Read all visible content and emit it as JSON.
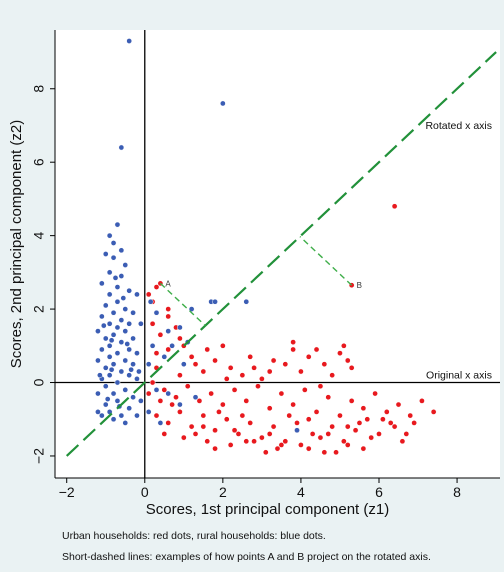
{
  "chart_data": {
    "type": "scatter",
    "title": "",
    "xlabel": "Scores, 1st principal component (z1)",
    "ylabel": "Scores, 2nd principal component (z2)",
    "xlim": [
      -2.3,
      9.1
    ],
    "ylim": [
      -2.6,
      9.6
    ],
    "xticks": [
      -2,
      0,
      2,
      4,
      6,
      8
    ],
    "yticks": [
      -2,
      0,
      2,
      4,
      6,
      8
    ],
    "grid": false,
    "colors": {
      "urban": "#e8191e",
      "rural": "#3b5db4",
      "rotated_axis": "#22913a",
      "projection": "#3fae4a",
      "axis_lines": "#000000",
      "background": "#eaf2f3",
      "plot_bg": "#ffffff"
    },
    "rotated_axis": {
      "label": "Rotated x axis",
      "from": [
        -2,
        -2
      ],
      "to": [
        9,
        9
      ]
    },
    "original_axis": {
      "label": "Original x axis"
    },
    "annotations": [
      {
        "label": "A",
        "x": 0.4,
        "y": 2.7,
        "projection": [
          1.55,
          1.55
        ]
      },
      {
        "label": "B",
        "x": 5.3,
        "y": 2.65,
        "projection": [
          3.975,
          3.975
        ]
      }
    ],
    "series": [
      {
        "group": "urban",
        "color": "#e8191e",
        "points": [
          [
            0.3,
            2.6
          ],
          [
            0.1,
            2.4
          ],
          [
            0.6,
            2.0
          ],
          [
            0.6,
            1.8
          ],
          [
            0.2,
            1.6
          ],
          [
            0.4,
            1.3
          ],
          [
            0.9,
            1.2
          ],
          [
            1.0,
            1.0
          ],
          [
            0.6,
            0.9
          ],
          [
            0.3,
            0.8
          ],
          [
            1.2,
            0.7
          ],
          [
            1.8,
            0.6
          ],
          [
            1.5,
            0.3
          ],
          [
            2.1,
            0.1
          ],
          [
            2.5,
            0.2
          ],
          [
            2.8,
            0.4
          ],
          [
            3.2,
            0.3
          ],
          [
            3.6,
            0.5
          ],
          [
            3.8,
            0.9
          ],
          [
            4.2,
            0.7
          ],
          [
            4.6,
            0.5
          ],
          [
            5.0,
            0.8
          ],
          [
            5.3,
            0.4
          ],
          [
            5.1,
            1.0
          ],
          [
            3.8,
            1.1
          ],
          [
            4.4,
            0.9
          ],
          [
            0.2,
            0.0
          ],
          [
            0.5,
            -0.2
          ],
          [
            0.8,
            -0.4
          ],
          [
            1.1,
            -0.1
          ],
          [
            1.4,
            -0.5
          ],
          [
            1.7,
            -0.3
          ],
          [
            2.0,
            -0.6
          ],
          [
            2.3,
            -0.2
          ],
          [
            2.6,
            -0.5
          ],
          [
            2.9,
            -0.1
          ],
          [
            3.2,
            -0.7
          ],
          [
            3.5,
            -0.3
          ],
          [
            3.8,
            -0.6
          ],
          [
            4.1,
            -0.2
          ],
          [
            4.4,
            -0.8
          ],
          [
            4.7,
            -0.4
          ],
          [
            5.0,
            -0.9
          ],
          [
            5.3,
            -0.5
          ],
          [
            5.6,
            -0.7
          ],
          [
            5.9,
            -0.3
          ],
          [
            6.2,
            -0.8
          ],
          [
            6.5,
            -0.6
          ],
          [
            6.8,
            -0.9
          ],
          [
            7.1,
            -0.5
          ],
          [
            7.4,
            -0.8
          ],
          [
            0.3,
            -0.9
          ],
          [
            0.6,
            -1.1
          ],
          [
            0.9,
            -0.8
          ],
          [
            1.2,
            -1.2
          ],
          [
            1.5,
            -0.9
          ],
          [
            1.8,
            -1.3
          ],
          [
            2.1,
            -1.0
          ],
          [
            2.4,
            -1.4
          ],
          [
            2.7,
            -1.1
          ],
          [
            3.0,
            -1.5
          ],
          [
            3.3,
            -1.2
          ],
          [
            3.6,
            -1.6
          ],
          [
            3.9,
            -1.3
          ],
          [
            4.2,
            -1.0
          ],
          [
            4.5,
            -1.5
          ],
          [
            4.8,
            -1.2
          ],
          [
            5.1,
            -1.6
          ],
          [
            5.4,
            -1.3
          ],
          [
            5.7,
            -1.0
          ],
          [
            6.0,
            -1.4
          ],
          [
            6.3,
            -1.1
          ],
          [
            6.6,
            -1.6
          ],
          [
            6.9,
            -1.1
          ],
          [
            0.5,
            -1.4
          ],
          [
            1.0,
            -1.5
          ],
          [
            1.6,
            -1.6
          ],
          [
            2.2,
            -1.7
          ],
          [
            2.8,
            -1.6
          ],
          [
            3.4,
            -1.8
          ],
          [
            4.0,
            -1.7
          ],
          [
            4.6,
            -1.9
          ],
          [
            3.1,
            -1.9
          ],
          [
            4.2,
            -1.8
          ],
          [
            5.2,
            -1.7
          ],
          [
            5.6,
            -1.8
          ],
          [
            4.9,
            -1.9
          ],
          [
            1.3,
            -1.4
          ],
          [
            0.7,
            -0.6
          ],
          [
            1.9,
            -0.8
          ],
          [
            2.5,
            -0.9
          ],
          [
            3.7,
            -0.9
          ],
          [
            4.3,
            -1.4
          ],
          [
            5.5,
            -1.1
          ],
          [
            0.4,
            -0.5
          ],
          [
            0.9,
            0.2
          ],
          [
            1.3,
            0.5
          ],
          [
            1.6,
            0.9
          ],
          [
            2.2,
            0.4
          ],
          [
            2.7,
            0.7
          ],
          [
            3.3,
            0.6
          ],
          [
            4.0,
            0.3
          ],
          [
            4.8,
            0.2
          ],
          [
            5.2,
            0.6
          ],
          [
            3.0,
            0.1
          ],
          [
            2.0,
            1.0
          ],
          [
            0.8,
            1.5
          ],
          [
            0.2,
            2.2
          ],
          [
            4.5,
            -0.1
          ],
          [
            5.8,
            -1.5
          ],
          [
            6.1,
            -1.0
          ],
          [
            0.1,
            -0.3
          ],
          [
            0.3,
            0.4
          ],
          [
            1.5,
            -1.2
          ],
          [
            2.3,
            -1.3
          ],
          [
            3.2,
            -1.4
          ],
          [
            3.9,
            -1.1
          ],
          [
            4.7,
            -1.4
          ],
          [
            5.2,
            -1.2
          ],
          [
            6.4,
            -1.2
          ],
          [
            6.7,
            -1.4
          ],
          [
            3.5,
            -1.7
          ],
          [
            2.6,
            -1.6
          ],
          [
            1.8,
            -1.8
          ],
          [
            6.4,
            4.8
          ],
          [
            5.3,
            2.65
          ],
          [
            0.4,
            2.7
          ]
        ]
      },
      {
        "group": "rural",
        "color": "#3b5db4",
        "points": [
          [
            -0.4,
            9.3
          ],
          [
            -0.6,
            6.4
          ],
          [
            2.0,
            7.6
          ],
          [
            -0.7,
            4.3
          ],
          [
            -0.9,
            4.0
          ],
          [
            -0.8,
            3.8
          ],
          [
            -0.6,
            3.6
          ],
          [
            -1.0,
            3.5
          ],
          [
            -0.8,
            3.4
          ],
          [
            -0.5,
            3.2
          ],
          [
            -0.9,
            3.0
          ],
          [
            -0.6,
            2.9
          ],
          [
            -1.1,
            2.7
          ],
          [
            -0.7,
            2.6
          ],
          [
            -0.4,
            2.5
          ],
          [
            -0.9,
            2.4
          ],
          [
            -0.2,
            2.4
          ],
          [
            -0.7,
            2.2
          ],
          [
            -1.0,
            2.1
          ],
          [
            -0.5,
            2.0
          ],
          [
            -0.8,
            1.9
          ],
          [
            -0.3,
            1.9
          ],
          [
            -1.1,
            1.8
          ],
          [
            -0.6,
            1.7
          ],
          [
            -0.9,
            1.6
          ],
          [
            -0.4,
            1.6
          ],
          [
            -0.7,
            1.5
          ],
          [
            -1.2,
            1.4
          ],
          [
            -0.5,
            1.4
          ],
          [
            -0.8,
            1.3
          ],
          [
            -1.0,
            1.2
          ],
          [
            -0.3,
            1.2
          ],
          [
            -0.6,
            1.1
          ],
          [
            -0.9,
            1.0
          ],
          [
            -0.4,
            0.9
          ],
          [
            -1.1,
            0.9
          ],
          [
            -0.7,
            0.8
          ],
          [
            -0.2,
            0.8
          ],
          [
            -0.9,
            0.7
          ],
          [
            -0.5,
            0.6
          ],
          [
            -1.2,
            0.6
          ],
          [
            -0.8,
            0.5
          ],
          [
            -0.3,
            0.5
          ],
          [
            -1.0,
            0.4
          ],
          [
            -0.6,
            0.3
          ],
          [
            -0.9,
            0.2
          ],
          [
            -0.4,
            0.2
          ],
          [
            -1.1,
            0.1
          ],
          [
            -0.7,
            0.0
          ],
          [
            -0.2,
            0.1
          ],
          [
            -1.0,
            -0.1
          ],
          [
            -0.5,
            -0.2
          ],
          [
            -0.8,
            -0.3
          ],
          [
            -1.2,
            -0.3
          ],
          [
            -0.3,
            -0.4
          ],
          [
            -0.7,
            -0.5
          ],
          [
            -1.0,
            -0.6
          ],
          [
            -0.4,
            -0.7
          ],
          [
            -0.9,
            -0.8
          ],
          [
            -0.6,
            -0.9
          ],
          [
            -1.1,
            -0.9
          ],
          [
            -0.2,
            -0.9
          ],
          [
            -0.8,
            -1.0
          ],
          [
            -0.5,
            -1.1
          ],
          [
            1.7,
            2.2
          ],
          [
            1.8,
            2.2
          ],
          [
            2.6,
            2.2
          ],
          [
            1.2,
            2.0
          ],
          [
            0.9,
            1.5
          ],
          [
            1.1,
            1.1
          ],
          [
            0.6,
            1.4
          ],
          [
            0.3,
            1.9
          ],
          [
            0.2,
            1.0
          ],
          [
            0.5,
            0.7
          ],
          [
            0.1,
            0.5
          ],
          [
            0.3,
            -0.2
          ],
          [
            0.6,
            -0.3
          ],
          [
            1.3,
            -0.4
          ],
          [
            0.9,
            -0.6
          ],
          [
            3.9,
            -1.3
          ],
          [
            0.4,
            -1.1
          ],
          [
            0.1,
            -0.8
          ],
          [
            0.7,
            1.0
          ],
          [
            1.0,
            0.5
          ],
          [
            -0.1,
            1.6
          ],
          [
            -0.15,
            0.3
          ],
          [
            -0.1,
            -0.5
          ],
          [
            -1.2,
            -0.8
          ],
          [
            -1.15,
            0.2
          ],
          [
            -0.85,
            1.15
          ],
          [
            -0.55,
            2.3
          ],
          [
            -0.75,
            2.85
          ],
          [
            -0.45,
            1.05
          ],
          [
            -0.95,
            -0.45
          ],
          [
            -0.65,
            -0.65
          ],
          [
            -1.05,
            1.55
          ],
          [
            -0.35,
            0.35
          ],
          [
            -0.85,
            0.35
          ],
          [
            0.15,
            2.2
          ]
        ]
      }
    ]
  },
  "notes": {
    "line1": "Urban households: red dots, rural households: blue dots.",
    "line2": "Short-dashed lines: examples of how points A and B project on the rotated axis."
  }
}
